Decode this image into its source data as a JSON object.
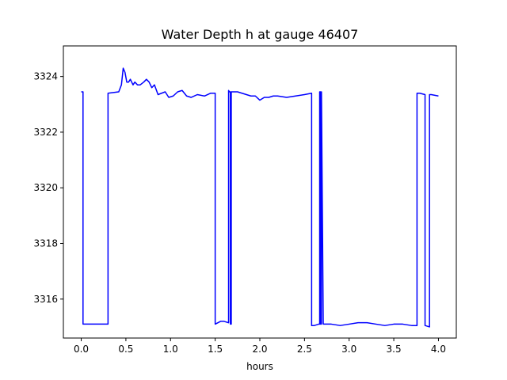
{
  "chart_data": {
    "type": "line",
    "title": "Water Depth h at gauge 46407",
    "xlabel": "hours",
    "ylabel": "",
    "xlim": [
      -0.2,
      4.2
    ],
    "ylim": [
      3314.6,
      3325.1
    ],
    "x_ticks": [
      0.0,
      0.5,
      1.0,
      1.5,
      2.0,
      2.5,
      3.0,
      3.5,
      4.0
    ],
    "x_tick_labels": [
      "0.0",
      "0.5",
      "1.0",
      "1.5",
      "2.0",
      "2.5",
      "3.0",
      "3.5",
      "4.0"
    ],
    "y_ticks": [
      3316,
      3318,
      3320,
      3322,
      3324
    ],
    "y_tick_labels": [
      "3316",
      "3318",
      "3320",
      "3322",
      "3324"
    ],
    "grid": false,
    "series": [
      {
        "color": "#0000ff",
        "x": [
          0.0,
          0.02,
          0.02,
          0.3,
          0.3,
          0.42,
          0.45,
          0.47,
          0.49,
          0.51,
          0.53,
          0.55,
          0.58,
          0.6,
          0.63,
          0.66,
          0.7,
          0.73,
          0.76,
          0.79,
          0.82,
          0.86,
          0.9,
          0.94,
          0.98,
          1.03,
          1.08,
          1.13,
          1.18,
          1.23,
          1.3,
          1.38,
          1.45,
          1.5,
          1.5,
          1.53,
          1.56,
          1.6,
          1.65,
          1.65,
          1.66,
          1.67,
          1.67,
          1.68,
          1.68,
          1.69,
          1.69,
          1.75,
          1.8,
          1.85,
          1.9,
          1.95,
          2.0,
          2.05,
          2.1,
          2.15,
          2.2,
          2.3,
          2.4,
          2.5,
          2.58,
          2.58,
          2.61,
          2.66,
          2.67,
          2.67,
          2.68,
          2.68,
          2.69,
          2.69,
          2.71,
          2.75,
          2.8,
          2.9,
          3.0,
          3.1,
          3.2,
          3.3,
          3.4,
          3.5,
          3.6,
          3.7,
          3.76,
          3.76,
          3.79,
          3.85,
          3.85,
          3.9,
          3.9,
          3.92,
          4.0
        ],
        "y": [
          3323.45,
          3323.45,
          3315.1,
          3315.1,
          3323.4,
          3323.45,
          3323.7,
          3324.3,
          3324.15,
          3323.8,
          3323.8,
          3323.9,
          3323.7,
          3323.8,
          3323.7,
          3323.7,
          3323.8,
          3323.9,
          3323.8,
          3323.6,
          3323.7,
          3323.35,
          3323.4,
          3323.45,
          3323.25,
          3323.3,
          3323.45,
          3323.5,
          3323.3,
          3323.25,
          3323.35,
          3323.3,
          3323.4,
          3323.4,
          3315.1,
          3315.15,
          3315.2,
          3315.2,
          3315.15,
          3323.5,
          3323.45,
          3323.45,
          3315.1,
          3315.1,
          3323.45,
          3323.45,
          3323.45,
          3323.45,
          3323.4,
          3323.35,
          3323.3,
          3323.3,
          3323.15,
          3323.25,
          3323.25,
          3323.3,
          3323.3,
          3323.25,
          3323.3,
          3323.35,
          3323.4,
          3315.05,
          3315.05,
          3315.1,
          3315.1,
          3323.45,
          3323.45,
          3315.1,
          3315.1,
          3323.45,
          3315.1,
          3315.1,
          3315.1,
          3315.05,
          3315.1,
          3315.15,
          3315.15,
          3315.1,
          3315.05,
          3315.1,
          3315.1,
          3315.05,
          3315.05,
          3323.4,
          3323.4,
          3323.35,
          3315.05,
          3315.0,
          3323.35,
          3323.35,
          3323.3
        ]
      }
    ]
  }
}
